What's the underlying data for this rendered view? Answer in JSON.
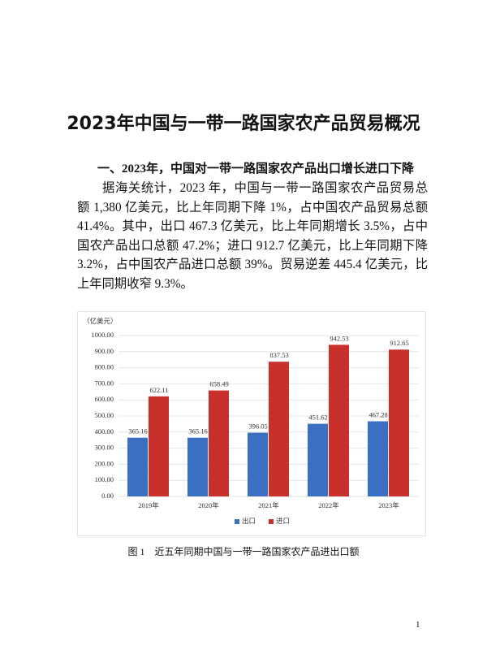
{
  "title": "2023年中国与一带一路国家农产品贸易概况",
  "section_heading": "一、2023年，中国对一带一路国家农产品出口增长进口下降",
  "paragraph": "据海关统计，2023 年，中国与一带一路国家农产品贸易总额 1,380 亿美元，比上年同期下降 1%，占中国农产品贸易总额 41.4%。其中，出口 467.3 亿美元，比上年同期增长 3.5%，占中国农产品出口总额 47.2%；进口 912.7 亿美元，比上年同期下降 3.2%，占中国农产品进口总额 39%。贸易逆差 445.4 亿美元，比上年同期收窄 9.3%。",
  "chart_data": {
    "type": "bar",
    "y_label": "（亿美元）",
    "categories": [
      "2019年",
      "2020年",
      "2021年",
      "2022年",
      "2023年"
    ],
    "series": [
      {
        "name": "出口",
        "color": "#3a6fc2",
        "values": [
          365.16,
          365.16,
          396.05,
          451.62,
          467.28
        ]
      },
      {
        "name": "进口",
        "color": "#c9302c",
        "values": [
          622.11,
          658.49,
          837.53,
          942.53,
          912.65
        ]
      }
    ],
    "ylim": [
      0,
      1000
    ],
    "yticks": [
      {
        "value": 0,
        "label": "0.00"
      },
      {
        "value": 100,
        "label": "100.00"
      },
      {
        "value": 200,
        "label": "200.00"
      },
      {
        "value": 300,
        "label": "300.00"
      },
      {
        "value": 400,
        "label": "400.00"
      },
      {
        "value": 500,
        "label": "500.00"
      },
      {
        "value": 600,
        "label": "600.00"
      },
      {
        "value": 700,
        "label": "700.00"
      },
      {
        "value": 800,
        "label": "800.00"
      },
      {
        "value": 900,
        "label": "900.00"
      },
      {
        "value": 1000,
        "label": "1000.00"
      }
    ],
    "grid": true,
    "legend": "bottom"
  },
  "caption": "图 1　近五年同期中国与一带一路国家农产品进出口额",
  "page_number": "1"
}
